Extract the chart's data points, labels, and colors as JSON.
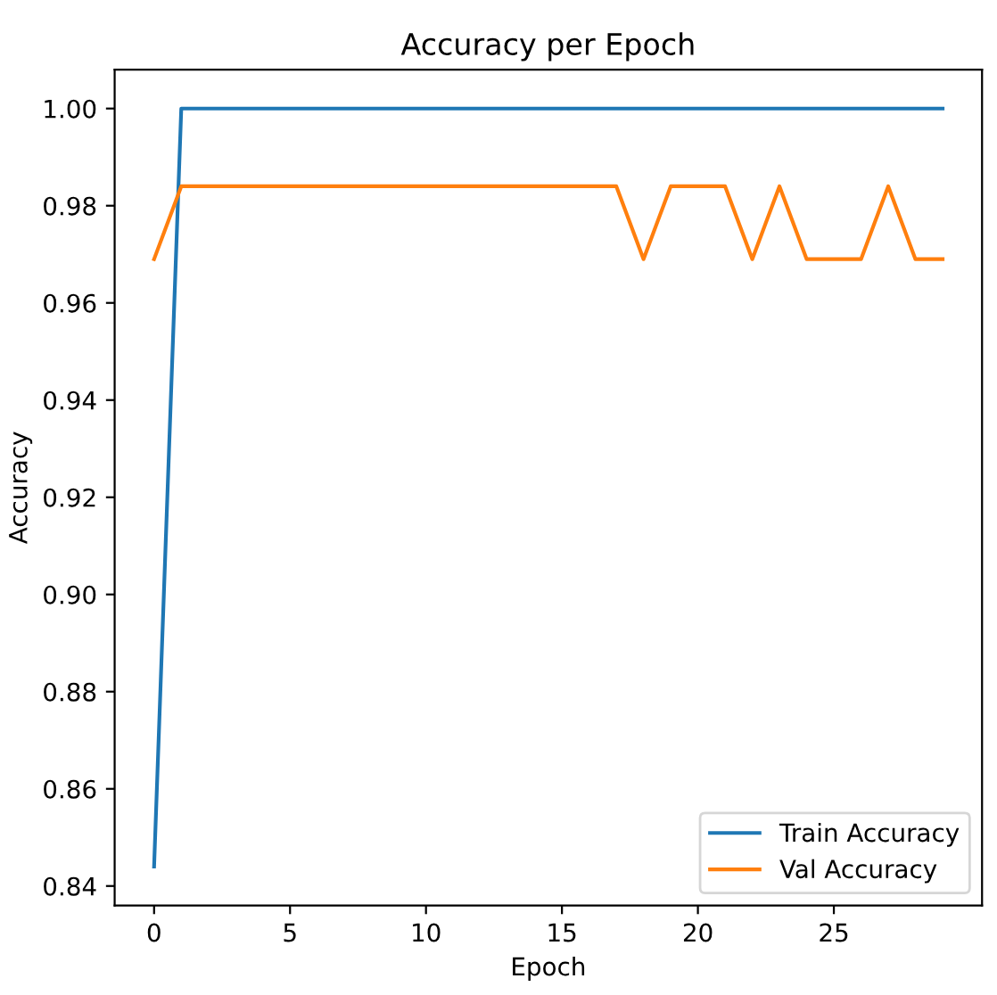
{
  "chart_data": {
    "type": "line",
    "title": "Accuracy per Epoch",
    "xlabel": "Epoch",
    "ylabel": "Accuracy",
    "x": [
      0,
      1,
      2,
      3,
      4,
      5,
      6,
      7,
      8,
      9,
      10,
      11,
      12,
      13,
      14,
      15,
      16,
      17,
      18,
      19,
      20,
      21,
      22,
      23,
      24,
      25,
      26,
      27,
      28,
      29
    ],
    "series": [
      {
        "name": "Train Accuracy",
        "color": "#1f77b4",
        "values": [
          0.844,
          1.0,
          1.0,
          1.0,
          1.0,
          1.0,
          1.0,
          1.0,
          1.0,
          1.0,
          1.0,
          1.0,
          1.0,
          1.0,
          1.0,
          1.0,
          1.0,
          1.0,
          1.0,
          1.0,
          1.0,
          1.0,
          1.0,
          1.0,
          1.0,
          1.0,
          1.0,
          1.0,
          1.0,
          1.0
        ]
      },
      {
        "name": "Val Accuracy",
        "color": "#ff7f0e",
        "values": [
          0.969,
          0.984,
          0.984,
          0.984,
          0.984,
          0.984,
          0.984,
          0.984,
          0.984,
          0.984,
          0.984,
          0.984,
          0.984,
          0.984,
          0.984,
          0.984,
          0.984,
          0.984,
          0.969,
          0.984,
          0.984,
          0.984,
          0.969,
          0.984,
          0.969,
          0.969,
          0.969,
          0.984,
          0.969,
          0.969
        ]
      }
    ],
    "xlim": [
      -1.45,
      30.45
    ],
    "ylim": [
      0.836,
      1.008
    ],
    "xticks": [
      0,
      5,
      10,
      15,
      20,
      25
    ],
    "yticks": [
      {
        "value": 0.84,
        "label": "0.84"
      },
      {
        "value": 0.86,
        "label": "0.86"
      },
      {
        "value": 0.88,
        "label": "0.88"
      },
      {
        "value": 0.9,
        "label": "0.90"
      },
      {
        "value": 0.92,
        "label": "0.92"
      },
      {
        "value": 0.94,
        "label": "0.94"
      },
      {
        "value": 0.96,
        "label": "0.96"
      },
      {
        "value": 0.98,
        "label": "0.98"
      },
      {
        "value": 1.0,
        "label": "1.00"
      }
    ],
    "legend": "bottom right",
    "line_style": "solid"
  }
}
